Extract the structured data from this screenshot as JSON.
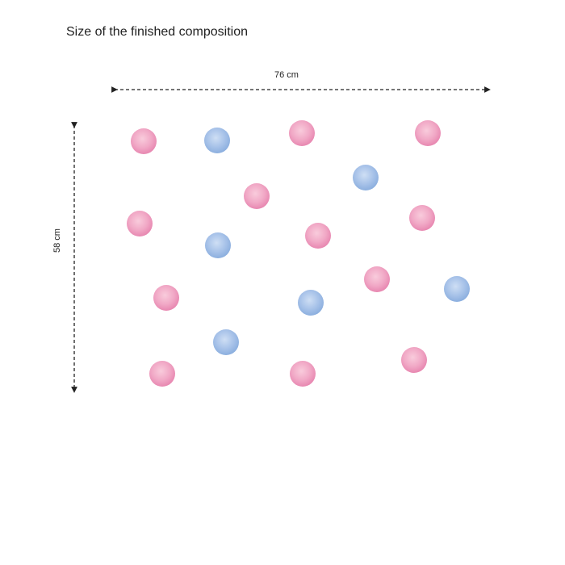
{
  "caption": "Size of the finished composition",
  "dimensions": {
    "width_label": "76 cm",
    "height_label": "58 cm"
  },
  "colors": {
    "pink": "#f2a6c3",
    "pink_deep": "#e57aa8",
    "blue": "#7fa6db",
    "blue_light": "#a9c4ea",
    "arrow": "#222222"
  },
  "dots": [
    {
      "color": "pink"
    },
    {
      "color": "blue"
    },
    {
      "color": "pink"
    },
    {
      "color": "pink"
    },
    {
      "color": "blue"
    },
    {
      "color": "pink"
    },
    {
      "color": "pink"
    },
    {
      "color": "pink"
    },
    {
      "color": "blue"
    },
    {
      "color": "pink"
    },
    {
      "color": "pink"
    },
    {
      "color": "pink"
    },
    {
      "color": "blue"
    },
    {
      "color": "blue"
    },
    {
      "color": "blue"
    },
    {
      "color": "pink"
    },
    {
      "color": "pink"
    },
    {
      "color": "pink"
    }
  ]
}
